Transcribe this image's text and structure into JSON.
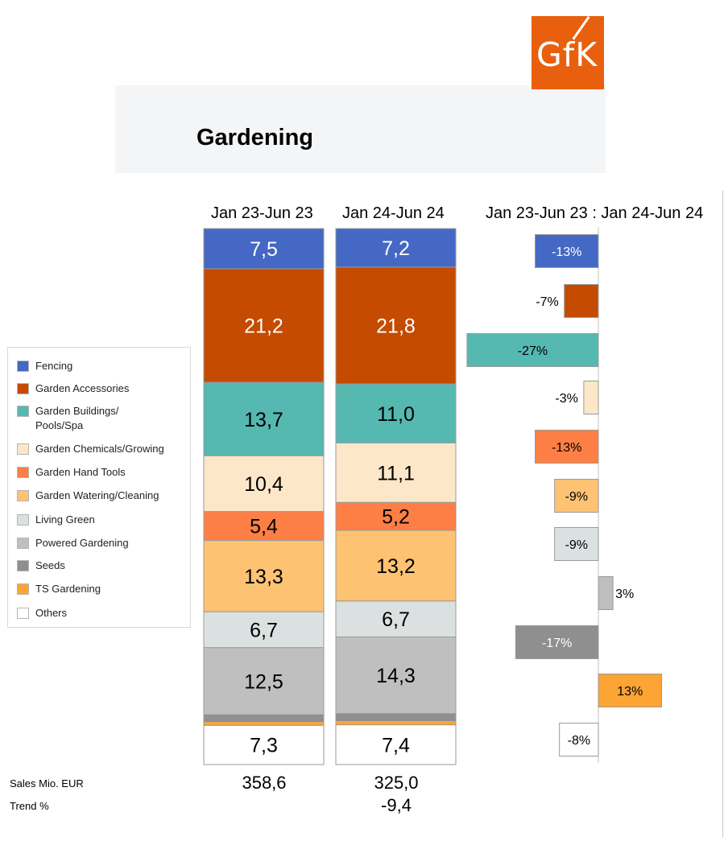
{
  "header": {
    "title": "Gardening",
    "logo_text": "GfK"
  },
  "columns": {
    "period_1": "Jan 23-Jun 23",
    "period_2": "Jan 24-Jun 24",
    "change_title": "Jan 23-Jun 23 : Jan 24-Jun 24"
  },
  "legend": [
    {
      "label": "Fencing",
      "color": "#4468c3"
    },
    {
      "label": "Garden Accessories",
      "color": "#c44b00"
    },
    {
      "label": "Garden Buildings/\nPools/Spa",
      "color": "#55b8b1"
    },
    {
      "label": "Garden Chemicals/Growing",
      "color": "#fde7c9"
    },
    {
      "label": "Garden Hand Tools",
      "color": "#fe7f45"
    },
    {
      "label": "Garden Watering/Cleaning",
      "color": "#fec273"
    },
    {
      "label": "Living Green",
      "color": "#dbe1e0"
    },
    {
      "label": "Powered Gardening",
      "color": "#bfbfbf"
    },
    {
      "label": "Seeds",
      "color": "#8f8f8f"
    },
    {
      "label": "TS Gardening",
      "color": "#fca434"
    },
    {
      "label": "Others",
      "color": "#ffffff"
    }
  ],
  "footer": {
    "sales_label": "Sales Mio. EUR",
    "trend_label": "Trend %",
    "sales_period_1": "358,6",
    "sales_period_2": "325,0",
    "trend_period_2": "-9,4"
  },
  "chart_data": [
    {
      "type": "bar",
      "stacked": true,
      "title": "Gardening",
      "unit": "% share of sales value",
      "categories": [
        "Jan 23-Jun 23",
        "Jan 24-Jun 24"
      ],
      "ylim": [
        0,
        100
      ],
      "series": [
        {
          "name": "Fencing",
          "values": [
            7.5,
            7.2
          ],
          "labels": [
            "7,5",
            "7,2"
          ],
          "label_color": "#ffffff"
        },
        {
          "name": "Garden Accessories",
          "values": [
            21.2,
            21.8
          ],
          "labels": [
            "21,2",
            "21,8"
          ],
          "label_color": "#ffffff"
        },
        {
          "name": "Garden Buildings/Pools/Spa",
          "values": [
            13.7,
            11.0
          ],
          "labels": [
            "13,7",
            "11,0"
          ],
          "label_color": "#000000"
        },
        {
          "name": "Garden Chemicals/Growing",
          "values": [
            10.4,
            11.1
          ],
          "labels": [
            "10,4",
            "11,1"
          ],
          "label_color": "#000000"
        },
        {
          "name": "Garden Hand Tools",
          "values": [
            5.4,
            5.2
          ],
          "labels": [
            "5,4",
            "5,2"
          ],
          "label_color": "#000000"
        },
        {
          "name": "Garden Watering/Cleaning",
          "values": [
            13.3,
            13.2
          ],
          "labels": [
            "13,3",
            "13,2"
          ],
          "label_color": "#000000"
        },
        {
          "name": "Living Green",
          "values": [
            6.7,
            6.7
          ],
          "labels": [
            "6,7",
            "6,7"
          ],
          "label_color": "#000000"
        },
        {
          "name": "Powered Gardening",
          "values": [
            12.5,
            14.3
          ],
          "labels": [
            "12,5",
            "14,3"
          ],
          "label_color": "#000000"
        },
        {
          "name": "Seeds",
          "values": [
            1.4,
            1.4
          ],
          "labels": null
        },
        {
          "name": "TS Gardening",
          "values": [
            0.6,
            0.7
          ],
          "labels": null
        },
        {
          "name": "Others",
          "values": [
            7.3,
            7.4
          ],
          "labels": [
            "7,3",
            "7,4"
          ],
          "label_color": "#000000"
        }
      ]
    },
    {
      "type": "bar",
      "orientation": "horizontal",
      "title": "Jan 23-Jun 23 : Jan 24-Jun 24",
      "unit": "% change",
      "categories": [
        "Fencing",
        "Garden Accessories",
        "Garden Buildings/Pools/Spa",
        "Garden Chemicals/Growing",
        "Garden Hand Tools",
        "Garden Watering/Cleaning",
        "Living Green",
        "Powered Gardening",
        "Seeds",
        "TS Gardening",
        "Others"
      ],
      "values": [
        -13,
        -7,
        -27,
        -3,
        -13,
        -9,
        -9,
        3,
        -17,
        13,
        -8
      ],
      "labels": [
        "-13%",
        "-7%",
        "-27%",
        "-3%",
        "-13%",
        "-9%",
        "-9%",
        "3%",
        "-17%",
        "13%",
        "-8%"
      ],
      "label_colors": [
        "#ffffff",
        "#000000",
        "#000000",
        "#000000",
        "#000000",
        "#000000",
        "#000000",
        "#000000",
        "#ffffff",
        "#000000",
        "#000000"
      ],
      "xlim": [
        -27,
        13
      ]
    }
  ]
}
